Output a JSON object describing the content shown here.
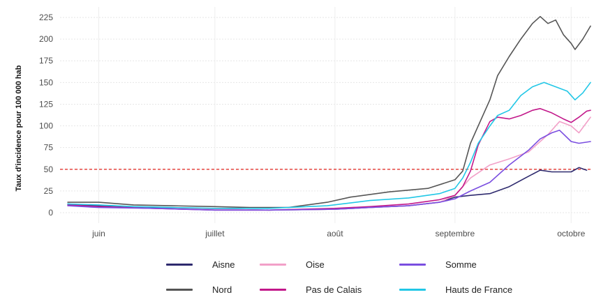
{
  "chart_data": {
    "type": "line",
    "title": "",
    "xlabel": "",
    "ylabel": "Taux d'incidence pour 100 000 hab",
    "x_range": [
      "2020-05-22",
      "2020-10-06"
    ],
    "ylim": [
      -12,
      237
    ],
    "y_ticks": [
      0,
      25,
      50,
      75,
      100,
      125,
      150,
      175,
      200,
      225
    ],
    "x_ticks": [
      {
        "date": "2020-06-01",
        "label": "juin"
      },
      {
        "date": "2020-07-01",
        "label": "juillet"
      },
      {
        "date": "2020-08-01",
        "label": "août"
      },
      {
        "date": "2020-09-01",
        "label": "septembre"
      },
      {
        "date": "2020-10-01",
        "label": "octobre"
      }
    ],
    "grid": true,
    "legend_position": "bottom",
    "reference_line": {
      "y": 50,
      "color": "#e3342f",
      "style": "dashed"
    },
    "series": [
      {
        "name": "Aisne",
        "color": "#2e2a6e",
        "points": [
          [
            "2020-05-24",
            10
          ],
          [
            "2020-06-01",
            8
          ],
          [
            "2020-06-15",
            6
          ],
          [
            "2020-07-01",
            4
          ],
          [
            "2020-07-15",
            3
          ],
          [
            "2020-08-01",
            4
          ],
          [
            "2020-08-10",
            6
          ],
          [
            "2020-08-20",
            8
          ],
          [
            "2020-08-28",
            12
          ],
          [
            "2020-09-01",
            18
          ],
          [
            "2020-09-05",
            20
          ],
          [
            "2020-09-10",
            22
          ],
          [
            "2020-09-15",
            30
          ],
          [
            "2020-09-20",
            42
          ],
          [
            "2020-09-23",
            49
          ],
          [
            "2020-09-26",
            47
          ],
          [
            "2020-10-01",
            47
          ],
          [
            "2020-10-03",
            52
          ],
          [
            "2020-10-05",
            49
          ]
        ]
      },
      {
        "name": "Nord",
        "color": "#555555",
        "points": [
          [
            "2020-05-24",
            12
          ],
          [
            "2020-06-01",
            12
          ],
          [
            "2020-06-10",
            9
          ],
          [
            "2020-06-20",
            8
          ],
          [
            "2020-07-01",
            7
          ],
          [
            "2020-07-10",
            6
          ],
          [
            "2020-07-20",
            6
          ],
          [
            "2020-07-30",
            12
          ],
          [
            "2020-08-05",
            18
          ],
          [
            "2020-08-15",
            24
          ],
          [
            "2020-08-25",
            28
          ],
          [
            "2020-09-01",
            38
          ],
          [
            "2020-09-03",
            48
          ],
          [
            "2020-09-05",
            80
          ],
          [
            "2020-09-07",
            100
          ],
          [
            "2020-09-10",
            130
          ],
          [
            "2020-09-12",
            158
          ],
          [
            "2020-09-15",
            180
          ],
          [
            "2020-09-18",
            200
          ],
          [
            "2020-09-21",
            218
          ],
          [
            "2020-09-23",
            226
          ],
          [
            "2020-09-25",
            218
          ],
          [
            "2020-09-27",
            222
          ],
          [
            "2020-09-29",
            205
          ],
          [
            "2020-10-01",
            195
          ],
          [
            "2020-10-02",
            188
          ],
          [
            "2020-10-04",
            200
          ],
          [
            "2020-10-06",
            215
          ]
        ]
      },
      {
        "name": "Oise",
        "color": "#f2a0c8",
        "points": [
          [
            "2020-05-24",
            8
          ],
          [
            "2020-06-01",
            7
          ],
          [
            "2020-06-15",
            5
          ],
          [
            "2020-07-01",
            4
          ],
          [
            "2020-07-15",
            3
          ],
          [
            "2020-08-01",
            4
          ],
          [
            "2020-08-10",
            6
          ],
          [
            "2020-08-20",
            8
          ],
          [
            "2020-08-28",
            12
          ],
          [
            "2020-09-01",
            20
          ],
          [
            "2020-09-05",
            40
          ],
          [
            "2020-09-10",
            55
          ],
          [
            "2020-09-15",
            62
          ],
          [
            "2020-09-20",
            70
          ],
          [
            "2020-09-25",
            90
          ],
          [
            "2020-09-28",
            105
          ],
          [
            "2020-10-01",
            100
          ],
          [
            "2020-10-03",
            92
          ],
          [
            "2020-10-06",
            110
          ]
        ]
      },
      {
        "name": "Pas de Calais",
        "color": "#c2188a",
        "points": [
          [
            "2020-05-24",
            9
          ],
          [
            "2020-06-01",
            7
          ],
          [
            "2020-06-15",
            5
          ],
          [
            "2020-07-01",
            3
          ],
          [
            "2020-07-15",
            3
          ],
          [
            "2020-08-01",
            5
          ],
          [
            "2020-08-10",
            7
          ],
          [
            "2020-08-20",
            10
          ],
          [
            "2020-08-28",
            15
          ],
          [
            "2020-09-01",
            20
          ],
          [
            "2020-09-03",
            30
          ],
          [
            "2020-09-05",
            48
          ],
          [
            "2020-09-07",
            78
          ],
          [
            "2020-09-10",
            105
          ],
          [
            "2020-09-12",
            110
          ],
          [
            "2020-09-15",
            108
          ],
          [
            "2020-09-18",
            112
          ],
          [
            "2020-09-21",
            118
          ],
          [
            "2020-09-23",
            120
          ],
          [
            "2020-09-26",
            115
          ],
          [
            "2020-09-29",
            108
          ],
          [
            "2020-10-01",
            104
          ],
          [
            "2020-10-03",
            110
          ],
          [
            "2020-10-05",
            117
          ],
          [
            "2020-10-06",
            118
          ]
        ]
      },
      {
        "name": "Somme",
        "color": "#7a4ee0",
        "points": [
          [
            "2020-05-24",
            8
          ],
          [
            "2020-06-01",
            6
          ],
          [
            "2020-06-15",
            5
          ],
          [
            "2020-07-01",
            3
          ],
          [
            "2020-07-15",
            3
          ],
          [
            "2020-08-01",
            4
          ],
          [
            "2020-08-10",
            6
          ],
          [
            "2020-08-20",
            8
          ],
          [
            "2020-08-28",
            12
          ],
          [
            "2020-09-01",
            16
          ],
          [
            "2020-09-05",
            25
          ],
          [
            "2020-09-10",
            35
          ],
          [
            "2020-09-15",
            55
          ],
          [
            "2020-09-20",
            72
          ],
          [
            "2020-09-23",
            85
          ],
          [
            "2020-09-26",
            92
          ],
          [
            "2020-09-28",
            95
          ],
          [
            "2020-10-01",
            82
          ],
          [
            "2020-10-03",
            80
          ],
          [
            "2020-10-06",
            82
          ]
        ]
      },
      {
        "name": "Hauts de France",
        "color": "#22c7e6",
        "points": [
          [
            "2020-05-24",
            10
          ],
          [
            "2020-06-01",
            9
          ],
          [
            "2020-06-10",
            7
          ],
          [
            "2020-06-20",
            6
          ],
          [
            "2020-07-01",
            5
          ],
          [
            "2020-07-15",
            5
          ],
          [
            "2020-07-30",
            8
          ],
          [
            "2020-08-10",
            14
          ],
          [
            "2020-08-20",
            17
          ],
          [
            "2020-08-28",
            22
          ],
          [
            "2020-09-01",
            28
          ],
          [
            "2020-09-03",
            40
          ],
          [
            "2020-09-05",
            58
          ],
          [
            "2020-09-07",
            80
          ],
          [
            "2020-09-10",
            100
          ],
          [
            "2020-09-12",
            112
          ],
          [
            "2020-09-15",
            118
          ],
          [
            "2020-09-18",
            135
          ],
          [
            "2020-09-21",
            145
          ],
          [
            "2020-09-24",
            150
          ],
          [
            "2020-09-27",
            145
          ],
          [
            "2020-09-30",
            140
          ],
          [
            "2020-10-02",
            130
          ],
          [
            "2020-10-04",
            138
          ],
          [
            "2020-10-06",
            150
          ]
        ]
      }
    ]
  }
}
